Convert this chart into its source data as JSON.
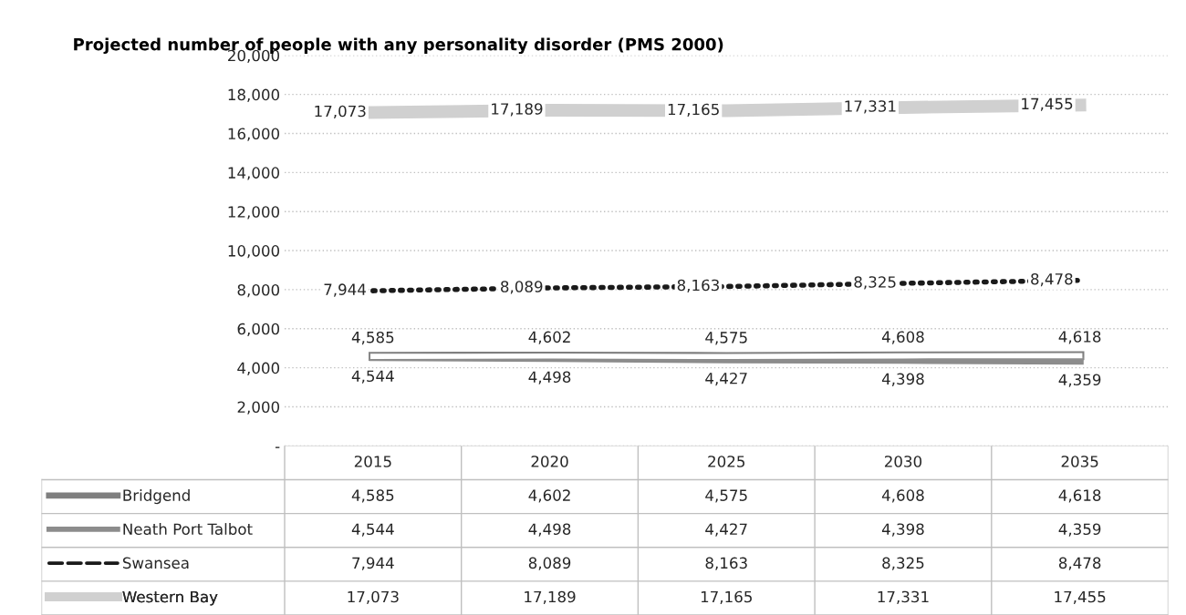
{
  "chart_data": {
    "type": "line",
    "title": "Projected number of people with any personality disorder (PMS 2000)",
    "categories": [
      "2015",
      "2020",
      "2025",
      "2030",
      "2035"
    ],
    "series": [
      {
        "name": "Bridgend",
        "color": "#7f7f7f",
        "line_style": "solid",
        "values": [
          4585,
          4602,
          4575,
          4608,
          4618
        ],
        "value_labels": [
          "4,585",
          "4,602",
          "4,575",
          "4,608",
          "4,618"
        ]
      },
      {
        "name": "Neath Port Talbot",
        "color": "#8c8c8c",
        "line_style": "solid",
        "values": [
          4544,
          4498,
          4427,
          4398,
          4359
        ],
        "value_labels": [
          "4,544",
          "4,498",
          "4,427",
          "4,398",
          "4,359"
        ]
      },
      {
        "name": "Swansea",
        "color": "#1a1a1a",
        "line_style": "dotted",
        "values": [
          7944,
          8089,
          8163,
          8325,
          8478
        ],
        "value_labels": [
          "7,944",
          "8,089",
          "8,163",
          "8,325",
          "8,478"
        ]
      },
      {
        "name": "Western Bay",
        "color": "#d0d0d0",
        "line_style": "solid",
        "values": [
          17073,
          17189,
          17165,
          17331,
          17455
        ],
        "value_labels": [
          "17,073",
          "17,189",
          "17,165",
          "17,331",
          "17,455"
        ]
      }
    ],
    "ylim": [
      0,
      20000
    ],
    "yticks": [
      {
        "value": 0,
        "label": "-"
      },
      {
        "value": 2000,
        "label": "2,000"
      },
      {
        "value": 4000,
        "label": "4,000"
      },
      {
        "value": 6000,
        "label": "6,000"
      },
      {
        "value": 8000,
        "label": "8,000"
      },
      {
        "value": 10000,
        "label": "10,000"
      },
      {
        "value": 12000,
        "label": "12,000"
      },
      {
        "value": 14000,
        "label": "14,000"
      },
      {
        "value": 16000,
        "label": "16,000"
      },
      {
        "value": 18000,
        "label": "18,000"
      },
      {
        "value": 20000,
        "label": "20,000"
      }
    ],
    "grid": "y",
    "legend": "bottom"
  }
}
